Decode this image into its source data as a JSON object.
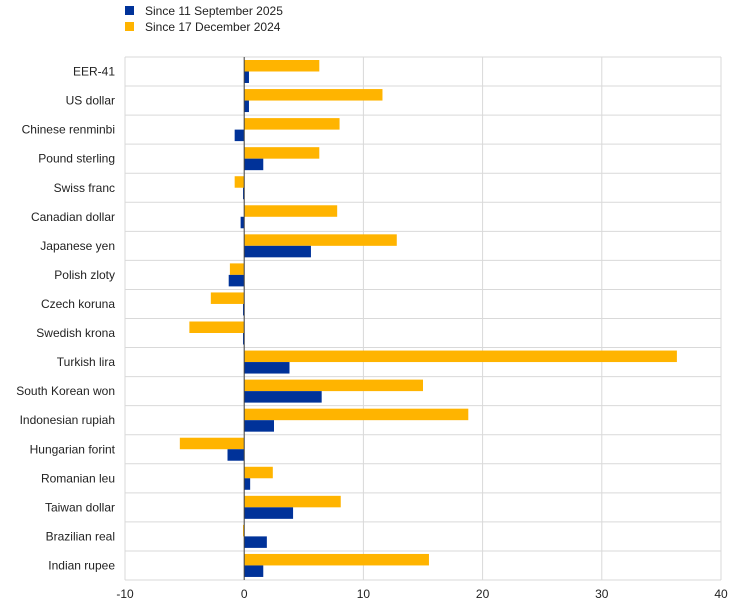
{
  "chart_data": {
    "type": "bar",
    "orientation": "horizontal",
    "categories": [
      "EER-41",
      "US dollar",
      "Chinese renminbi",
      "Pound sterling",
      "Swiss franc",
      "Canadian dollar",
      "Japanese yen",
      "Polish zloty",
      "Czech koruna",
      "Swedish krona",
      "Turkish lira",
      "South Korean won",
      "Indonesian rupiah",
      "Hungarian forint",
      "Romanian leu",
      "Taiwan dollar",
      "Brazilian real",
      "Indian rupee"
    ],
    "series": [
      {
        "name": "Since 11 September 2025",
        "color": "#003299",
        "values": [
          0.4,
          0.4,
          -0.8,
          1.6,
          -0.1,
          -0.3,
          5.6,
          -1.3,
          -0.1,
          -0.1,
          3.8,
          6.5,
          2.5,
          -1.4,
          0.5,
          4.1,
          1.9,
          1.6
        ]
      },
      {
        "name": "Since 17 December 2024",
        "color": "#FFB400",
        "values": [
          6.3,
          11.6,
          8.0,
          6.3,
          -0.8,
          7.8,
          12.8,
          -1.2,
          -2.8,
          -4.6,
          36.3,
          15.0,
          18.8,
          -5.4,
          2.4,
          8.1,
          -0.1,
          15.5
        ]
      }
    ],
    "xlim": [
      -10,
      40
    ],
    "xticks": [
      "-10",
      "0",
      "10",
      "20",
      "30",
      "40"
    ],
    "grid": true,
    "legend": "top-left"
  }
}
